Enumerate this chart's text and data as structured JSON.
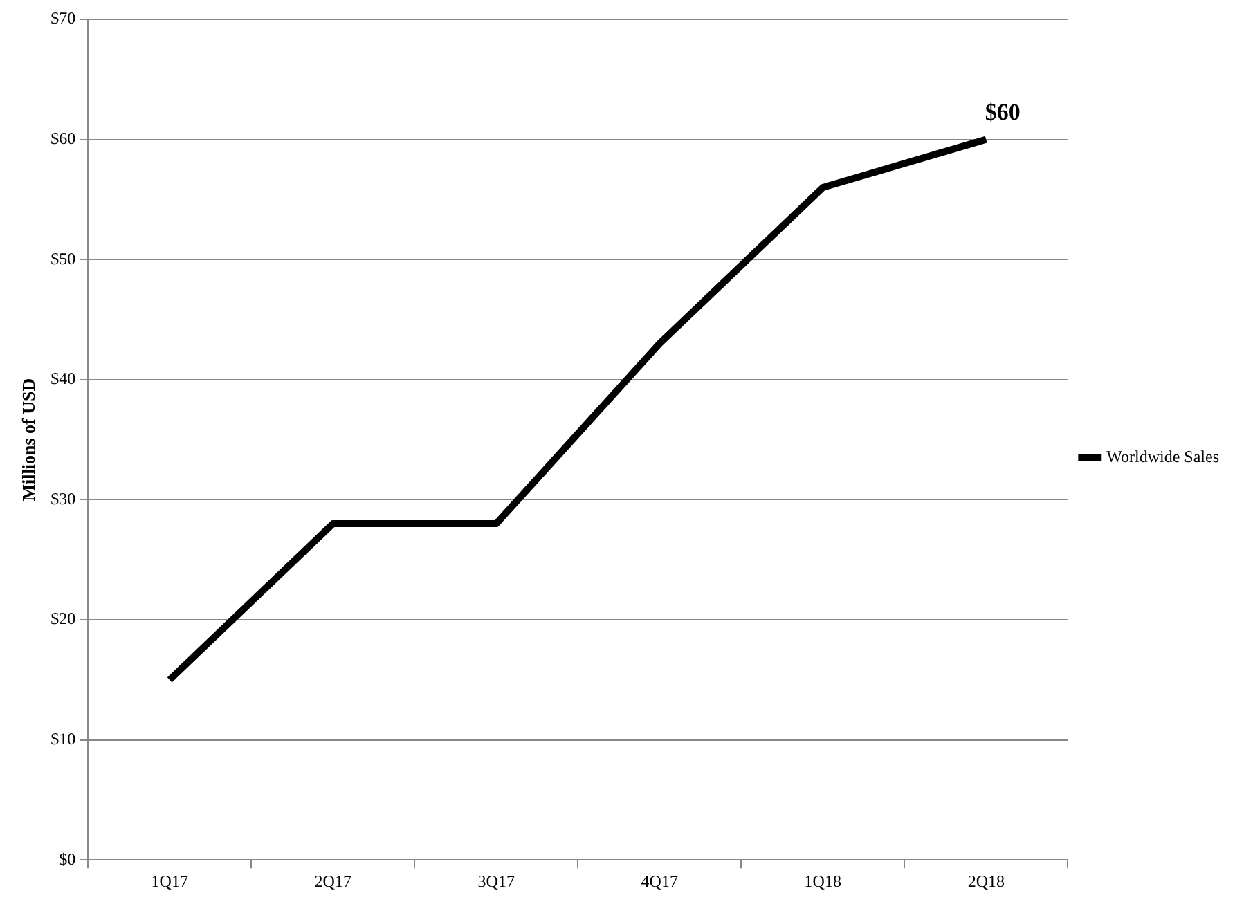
{
  "chart_data": {
    "type": "line",
    "ylabel": "Millions of USD",
    "categories": [
      "1Q17",
      "2Q17",
      "3Q17",
      "4Q17",
      "1Q18",
      "2Q18"
    ],
    "series": [
      {
        "name": "Worldwide Sales",
        "color": "#000000",
        "values": [
          15,
          28,
          28,
          43,
          56,
          60
        ]
      }
    ],
    "ylim": [
      0,
      70
    ],
    "yticks": [
      {
        "value": 0,
        "label": "$0"
      },
      {
        "value": 10,
        "label": "$10"
      },
      {
        "value": 20,
        "label": "$20"
      },
      {
        "value": 30,
        "label": "$30"
      },
      {
        "value": 40,
        "label": "$40"
      },
      {
        "value": 50,
        "label": "$50"
      },
      {
        "value": 60,
        "label": "$60"
      },
      {
        "value": 70,
        "label": "$70"
      }
    ],
    "annotations": [
      {
        "text": "$60",
        "x": "2Q18",
        "y": 60
      }
    ],
    "grid": "y",
    "legend": "right",
    "marker": "none",
    "line_style": "solid"
  }
}
